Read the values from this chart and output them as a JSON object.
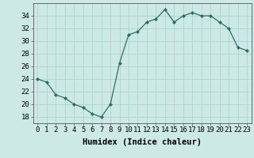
{
  "x": [
    0,
    1,
    2,
    3,
    4,
    5,
    6,
    7,
    8,
    9,
    10,
    11,
    12,
    13,
    14,
    15,
    16,
    17,
    18,
    19,
    20,
    21,
    22,
    23
  ],
  "y": [
    24,
    23.5,
    21.5,
    21,
    20,
    19.5,
    18.5,
    18,
    20,
    26.5,
    31,
    31.5,
    33,
    33.5,
    35,
    33,
    34,
    34.5,
    34,
    34,
    33,
    32,
    29,
    28.5
  ],
  "line_color": "#2d6e63",
  "marker_color": "#2d6e63",
  "bg_color": "#cce9e5",
  "grid_color": "#aed4cf",
  "xlabel": "Humidex (Indice chaleur)",
  "ylim": [
    17,
    36
  ],
  "yticks": [
    18,
    20,
    22,
    24,
    26,
    28,
    30,
    32,
    34
  ],
  "xticks": [
    0,
    1,
    2,
    3,
    4,
    5,
    6,
    7,
    8,
    9,
    10,
    11,
    12,
    13,
    14,
    15,
    16,
    17,
    18,
    19,
    20,
    21,
    22,
    23
  ],
  "xlabel_fontsize": 7.5,
  "tick_fontsize": 6.5
}
